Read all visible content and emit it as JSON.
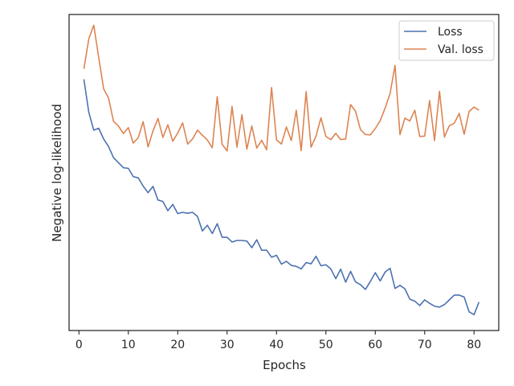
{
  "chart_data": {
    "type": "line",
    "title": "",
    "xlabel": "Epochs",
    "ylabel": "Negative log-likelihood",
    "xlim": [
      -2,
      85
    ],
    "ylim": [
      0,
      1
    ],
    "x_ticks": [
      0,
      10,
      20,
      30,
      40,
      50,
      60,
      70,
      80
    ],
    "y_ticks_visible": false,
    "grid": false,
    "legend_position": "top-right",
    "colors": {
      "loss": "#4c72b0",
      "val_loss": "#dd8452",
      "axes": "#262626"
    },
    "x": [
      1,
      2,
      3,
      4,
      5,
      6,
      7,
      8,
      9,
      10,
      11,
      12,
      13,
      14,
      15,
      16,
      17,
      18,
      19,
      20,
      21,
      22,
      23,
      24,
      25,
      26,
      27,
      28,
      29,
      30,
      31,
      32,
      33,
      34,
      35,
      36,
      37,
      38,
      39,
      40,
      41,
      42,
      43,
      44,
      45,
      46,
      47,
      48,
      49,
      50,
      51,
      52,
      53,
      54,
      55,
      56,
      57,
      58,
      59,
      60,
      61,
      62,
      63,
      64,
      65,
      66,
      67,
      68,
      69,
      70,
      71,
      72,
      73,
      74,
      75,
      76,
      77,
      78,
      79,
      80,
      81
    ],
    "series": [
      {
        "name": "Loss",
        "values": [
          0.795,
          0.69,
          0.634,
          0.64,
          0.606,
          0.582,
          0.547,
          0.531,
          0.515,
          0.513,
          0.487,
          0.483,
          0.457,
          0.436,
          0.456,
          0.413,
          0.408,
          0.379,
          0.399,
          0.37,
          0.374,
          0.371,
          0.374,
          0.361,
          0.315,
          0.333,
          0.307,
          0.338,
          0.295,
          0.295,
          0.28,
          0.285,
          0.285,
          0.283,
          0.262,
          0.287,
          0.254,
          0.254,
          0.232,
          0.238,
          0.21,
          0.219,
          0.206,
          0.203,
          0.195,
          0.215,
          0.211,
          0.235,
          0.205,
          0.208,
          0.195,
          0.164,
          0.194,
          0.153,
          0.187,
          0.154,
          0.145,
          0.13,
          0.155,
          0.183,
          0.157,
          0.185,
          0.197,
          0.133,
          0.143,
          0.132,
          0.099,
          0.093,
          0.079,
          0.097,
          0.086,
          0.077,
          0.074,
          0.082,
          0.097,
          0.112,
          0.112,
          0.106,
          0.059,
          0.05,
          0.09
        ]
      },
      {
        "name": "Val. loss",
        "values": [
          0.828,
          0.923,
          0.966,
          0.864,
          0.765,
          0.735,
          0.662,
          0.647,
          0.623,
          0.642,
          0.593,
          0.61,
          0.661,
          0.581,
          0.632,
          0.671,
          0.611,
          0.651,
          0.599,
          0.625,
          0.657,
          0.59,
          0.606,
          0.634,
          0.618,
          0.603,
          0.578,
          0.74,
          0.589,
          0.568,
          0.709,
          0.58,
          0.683,
          0.574,
          0.647,
          0.577,
          0.602,
          0.572,
          0.769,
          0.603,
          0.59,
          0.644,
          0.601,
          0.697,
          0.569,
          0.756,
          0.58,
          0.615,
          0.673,
          0.614,
          0.604,
          0.624,
          0.604,
          0.606,
          0.715,
          0.694,
          0.636,
          0.62,
          0.619,
          0.639,
          0.664,
          0.704,
          0.75,
          0.839,
          0.62,
          0.672,
          0.663,
          0.697,
          0.614,
          0.615,
          0.728,
          0.601,
          0.757,
          0.612,
          0.648,
          0.656,
          0.687,
          0.621,
          0.693,
          0.707,
          0.697
        ]
      }
    ]
  }
}
